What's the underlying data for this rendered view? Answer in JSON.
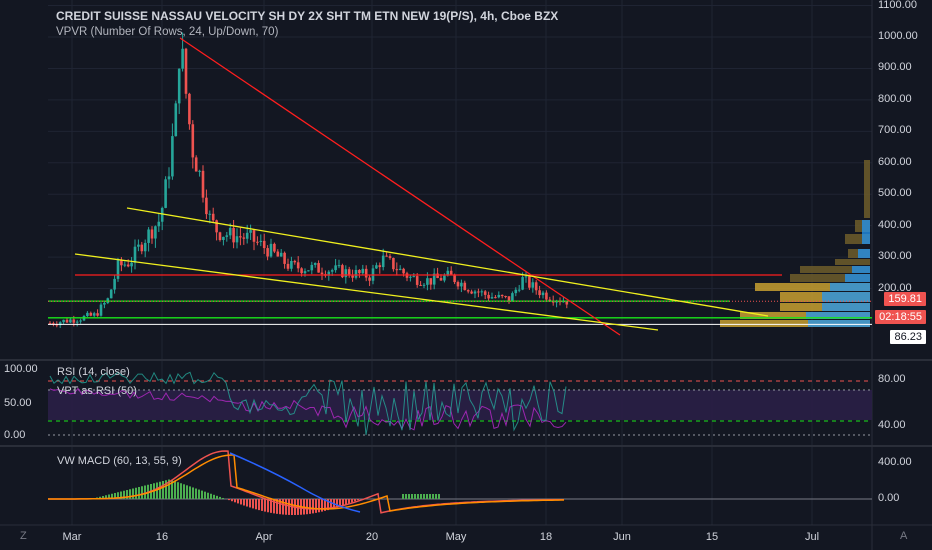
{
  "header": {
    "title": "CREDIT SUISSE NASSAU VELOCITY SH DY 2X SHT TM ETN NEW 19(P/S), 4h, Cboe BZX",
    "indicator": "VPVR (Number Of Rows, 24, Up/Down, 70)"
  },
  "price_tags": {
    "last_price": "159.81",
    "countdown": "02:18:55",
    "level": "86.23"
  },
  "colors": {
    "background": "#131722",
    "up": "#26a69a",
    "down": "#ef5350",
    "trend_red": "#ff1e1e",
    "channel_yellow": "#f0f01e",
    "support_green": "#19e619",
    "rsi_purple": "#9c27b0",
    "macd_orange": "#ff8c00",
    "macd_blue": "#2962ff"
  },
  "panes": {
    "rsi_label": "RSI (14, close)",
    "vpt_label": "VPT as RSI (50)",
    "macd_label": "VW MACD (60, 13, 55, 9)"
  },
  "corner": {
    "left": "Z",
    "right": "A"
  },
  "chart_data": [
    {
      "type": "candlestick",
      "title": "CREDIT SUISSE NASSAU VELOCITY SH DY 2X SHT TM ETN NEW 19(P/S), 4h, Cboe BZX",
      "x_ticks": [
        "Mar",
        "16",
        "Apr",
        "20",
        "May",
        "18",
        "Jun",
        "15",
        "Jul"
      ],
      "y_ticks": [
        "1100.00",
        "1000.00",
        "900.00",
        "800.00",
        "700.00",
        "600.00",
        "500.00",
        "400.00",
        "300.00",
        "200.00"
      ],
      "ylim": [
        70,
        1100
      ],
      "approx_close_path": [
        {
          "x": "Feb 28",
          "close": 90
        },
        {
          "x": "Mar 6",
          "close": 140
        },
        {
          "x": "Mar 9",
          "close": 270
        },
        {
          "x": "Mar 13",
          "close": 360
        },
        {
          "x": "Mar 16",
          "close": 560
        },
        {
          "x": "Mar 18",
          "close": 1000
        },
        {
          "x": "Mar 20",
          "close": 700
        },
        {
          "x": "Mar 23",
          "close": 380
        },
        {
          "x": "Apr 1",
          "close": 360
        },
        {
          "x": "Apr 8",
          "close": 270
        },
        {
          "x": "Apr 20",
          "close": 240
        },
        {
          "x": "Apr 22",
          "close": 300
        },
        {
          "x": "May 1",
          "close": 230
        },
        {
          "x": "May 11",
          "close": 170
        },
        {
          "x": "May 15",
          "close": 230
        },
        {
          "x": "May 20",
          "close": 160
        }
      ],
      "last_price": 159.81,
      "horizontal_levels": [
        {
          "name": "red resistance",
          "value": 243
        },
        {
          "name": "green support",
          "value": 160
        },
        {
          "name": "green support",
          "value": 107
        },
        {
          "name": "white level",
          "value": 86.23
        }
      ],
      "trendlines": [
        "red descending trendline from the March peak",
        "yellow descending channel (upper and lower lines)"
      ],
      "grid": true
    },
    {
      "type": "line",
      "series": [
        {
          "name": "RSI (14, close)"
        },
        {
          "name": "VPT as RSI (50)"
        }
      ],
      "left_ticks": [
        "100.00",
        "50.00",
        "0.00"
      ],
      "right_ticks": [
        "80.00",
        "40.00"
      ]
    },
    {
      "type": "line",
      "series": [
        {
          "name": "VW MACD (60, 13, 55, 9)"
        }
      ],
      "right_ticks": [
        "400.00",
        "0.00"
      ]
    }
  ]
}
